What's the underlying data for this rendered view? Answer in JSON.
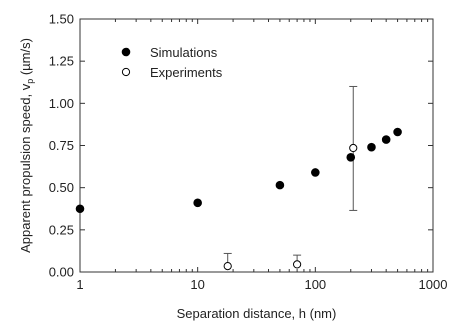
{
  "chart_data": {
    "type": "scatter",
    "xlabel": "Separation distance, h (nm)",
    "ylabel_main": "Apparent propulsion speed, v",
    "ylabel_sub": "p",
    "ylabel_unit": " (µm/s)",
    "xscale": "log",
    "xlim": [
      1,
      1000
    ],
    "ylim": [
      0,
      1.5
    ],
    "xticks": [
      1,
      10,
      100,
      1000
    ],
    "xtick_labels": [
      "1",
      "10",
      "100",
      "1000"
    ],
    "yticks": [
      0,
      0.25,
      0.5,
      0.75,
      1.0,
      1.25,
      1.5
    ],
    "ytick_labels": [
      "0.00",
      "0.25",
      "0.50",
      "0.75",
      "1.00",
      "1.25",
      "1.50"
    ],
    "grid": false,
    "legend_position": "top-left",
    "series": [
      {
        "name": "Simulations",
        "marker": "filled-circle",
        "color": "#000000",
        "x": [
          1,
          10,
          50,
          100,
          200,
          300,
          400,
          500
        ],
        "y": [
          0.375,
          0.41,
          0.515,
          0.59,
          0.68,
          0.74,
          0.785,
          0.83
        ]
      },
      {
        "name": "Experiments",
        "marker": "open-circle",
        "color": "#000000",
        "x": [
          18,
          70,
          210
        ],
        "y": [
          0.035,
          0.045,
          0.735
        ],
        "err_upper": [
          0.075,
          0.055,
          0.365
        ],
        "err_lower": [
          0,
          0,
          0.37
        ]
      }
    ]
  }
}
